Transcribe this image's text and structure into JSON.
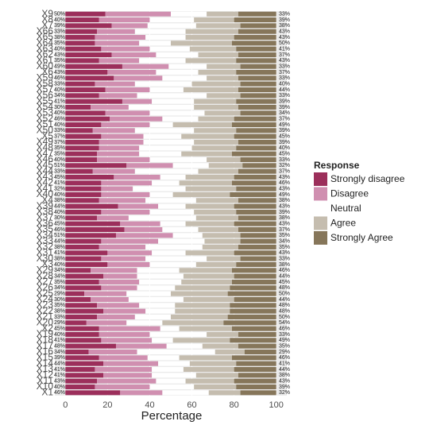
{
  "chart_data": {
    "type": "stacked_barh",
    "xlabel": "Percentage",
    "legend_title": "Response",
    "legend": "right",
    "xlim": [
      -5,
      105
    ],
    "xticks": [
      0,
      20,
      40,
      60,
      80,
      100
    ],
    "categories": [
      "X9",
      "X8",
      "X7",
      "X66",
      "X65",
      "X64",
      "X63",
      "X62",
      "X61",
      "X60",
      "X6",
      "X59",
      "X58",
      "X57",
      "X56",
      "X55",
      "X54",
      "X53",
      "X52",
      "X51",
      "X50",
      "X5",
      "X49",
      "X48",
      "X47",
      "X46",
      "X45",
      "X44",
      "X43",
      "X42",
      "X41",
      "X40",
      "X4",
      "X39",
      "X38",
      "X37",
      "X36",
      "X35",
      "X34",
      "X33",
      "X32",
      "X31",
      "X30",
      "X3",
      "X29",
      "X28",
      "X27",
      "X26",
      "X25",
      "X24",
      "X23",
      "X22",
      "X21",
      "X20",
      "X2",
      "X19",
      "X18",
      "X17",
      "X16",
      "X15",
      "X14",
      "X13",
      "X12",
      "X11",
      "X10",
      "X1"
    ],
    "series": [
      {
        "name": "Strongly disagree",
        "color": "#9c2f5b",
        "values": [
          19,
          16,
          22,
          15,
          14,
          14,
          17,
          22,
          16,
          27,
          20,
          23,
          14,
          19,
          16,
          27,
          12,
          19,
          21,
          17,
          13,
          17,
          16,
          16,
          15,
          15,
          29,
          13,
          23,
          17,
          17,
          17,
          16,
          25,
          17,
          15,
          26,
          28,
          24,
          17,
          16,
          20,
          17,
          20,
          12,
          18,
          16,
          17,
          9,
          12,
          15,
          18,
          15,
          10,
          16,
          16,
          17,
          24,
          11,
          16,
          18,
          14,
          18,
          15,
          14,
          26
        ]
      },
      {
        "name": "Disagree",
        "color": "#d08fb0",
        "values": [
          31,
          24,
          17,
          18,
          24,
          21,
          23,
          21,
          19,
          22,
          23,
          23,
          19,
          21,
          18,
          14,
          18,
          21,
          25,
          23,
          20,
          20,
          21,
          19,
          20,
          25,
          22,
          20,
          22,
          24,
          15,
          23,
          22,
          19,
          23,
          15,
          19,
          18,
          27,
          27,
          22,
          21,
          21,
          20,
          22,
          16,
          19,
          17,
          20,
          18,
          20,
          20,
          18,
          19,
          29,
          24,
          24,
          24,
          23,
          23,
          26,
          27,
          23,
          28,
          26,
          20
        ]
      },
      {
        "name": "Neutral",
        "color": "#ffffff",
        "values": [
          17,
          21,
          23,
          24,
          19,
          15,
          19,
          20,
          22,
          18,
          20,
          21,
          27,
          16,
          33,
          20,
          31,
          26,
          17,
          11,
          28,
          18,
          24,
          25,
          20,
          27,
          17,
          30,
          12,
          13,
          25,
          11,
          24,
          13,
          21,
          32,
          12,
          17,
          14,
          22,
          27,
          16,
          29,
          22,
          20,
          22,
          20,
          18,
          21,
          26,
          17,
          14,
          17,
          17,
          9,
          27,
          10,
          17,
          37,
          15,
          15,
          15,
          21,
          14,
          21,
          22
        ]
      },
      {
        "name": "Agree",
        "color": "#c5bdaf",
        "values": [
          15,
          19,
          21,
          25,
          23,
          29,
          22,
          19,
          24,
          16,
          18,
          15,
          23,
          26,
          16,
          20,
          21,
          17,
          17,
          28,
          20,
          25,
          21,
          21,
          24,
          16,
          16,
          19,
          23,
          25,
          24,
          27,
          20,
          23,
          20,
          20,
          23,
          19,
          18,
          17,
          17,
          23,
          16,
          19,
          25,
          24,
          24,
          26,
          27,
          24,
          26,
          26,
          27,
          29,
          25,
          15,
          27,
          17,
          14,
          25,
          22,
          24,
          20,
          23,
          20,
          15
        ]
      },
      {
        "name": "Strongly Agree",
        "color": "#86765a",
        "values": [
          18,
          20,
          17,
          18,
          20,
          21,
          19,
          18,
          19,
          17,
          19,
          18,
          17,
          18,
          17,
          19,
          18,
          17,
          20,
          21,
          19,
          20,
          18,
          19,
          21,
          17,
          16,
          18,
          20,
          21,
          19,
          22,
          18,
          20,
          19,
          18,
          20,
          18,
          17,
          17,
          18,
          20,
          17,
          19,
          21,
          20,
          21,
          22,
          23,
          20,
          22,
          22,
          23,
          25,
          21,
          18,
          22,
          18,
          15,
          21,
          19,
          20,
          18,
          20,
          19,
          17
        ]
      }
    ],
    "left_totals": {
      "values": [
        50,
        40,
        39,
        33,
        38,
        35,
        40,
        43,
        35,
        49,
        43,
        46,
        33,
        40,
        34,
        41,
        30,
        40,
        46,
        40,
        33,
        37,
        37,
        35,
        35,
        40,
        51,
        33,
        45,
        41,
        32,
        40,
        38,
        44,
        40,
        30,
        45,
        46,
        51,
        44,
        38,
        41,
        38,
        40,
        34,
        34,
        35,
        34,
        29,
        30,
        35,
        38,
        33,
        29,
        45,
        40,
        41,
        48,
        34,
        39,
        44,
        41,
        41,
        43,
        40,
        46
      ],
      "value_labels": [
        "50%",
        "40%",
        "39%",
        "33%",
        "38%",
        "35%",
        "40%",
        "43%",
        "35%",
        "49%",
        "43%",
        "46%",
        "33%",
        "40%",
        "34%",
        "41%",
        "30%",
        "40%",
        "46%",
        "40%",
        "33%",
        "37%",
        "37%",
        "35%",
        "35%",
        "40%",
        "51%",
        "33%",
        "45%",
        "41%",
        "32%",
        "40%",
        "38%",
        "44%",
        "40%",
        "30%",
        "45%",
        "46%",
        "51%",
        "44%",
        "38%",
        "41%",
        "38%",
        "40%",
        "34%",
        "34%",
        "35%",
        "34%",
        "29%",
        "30%",
        "35%",
        "38%",
        "33%",
        "29%",
        "45%",
        "40%",
        "41%",
        "48%",
        "34%",
        "39%",
        "44%",
        "41%",
        "41%",
        "43%",
        "40%",
        "46%"
      ]
    },
    "right_totals": {
      "values": [
        33,
        39,
        38,
        43,
        43,
        50,
        41,
        37,
        43,
        33,
        37,
        33,
        40,
        44,
        33,
        39,
        39,
        34,
        37,
        49,
        39,
        45,
        39,
        40,
        45,
        33,
        32,
        37,
        43,
        46,
        43,
        49,
        38,
        43,
        39,
        38,
        43,
        37,
        35,
        34,
        35,
        43,
        33,
        38,
        46,
        44,
        45,
        48,
        50,
        44,
        48,
        48,
        50,
        54,
        46,
        33,
        49,
        35,
        29,
        46,
        41,
        44,
        38,
        43,
        39,
        32
      ],
      "value_labels": [
        "33%",
        "39%",
        "38%",
        "43%",
        "43%",
        "50%",
        "41%",
        "37%",
        "43%",
        "33%",
        "37%",
        "33%",
        "40%",
        "44%",
        "33%",
        "39%",
        "39%",
        "34%",
        "37%",
        "49%",
        "39%",
        "45%",
        "39%",
        "40%",
        "45%",
        "33%",
        "32%",
        "37%",
        "43%",
        "46%",
        "43%",
        "49%",
        "38%",
        "43%",
        "39%",
        "38%",
        "43%",
        "37%",
        "35%",
        "34%",
        "35%",
        "43%",
        "33%",
        "38%",
        "46%",
        "44%",
        "45%",
        "48%",
        "50%",
        "44%",
        "48%",
        "48%",
        "50%",
        "54%",
        "46%",
        "33%",
        "49%",
        "35%",
        "29%",
        "46%",
        "41%",
        "44%",
        "38%",
        "43%",
        "39%",
        "32%"
      ]
    }
  }
}
